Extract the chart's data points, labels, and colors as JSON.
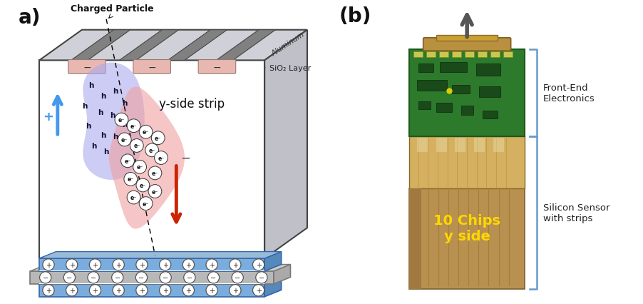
{
  "background_color": "#ffffff",
  "panel_a_label": "a)",
  "panel_b_label": "(b)",
  "label_a_fontsize": 20,
  "label_b_fontsize": 20,
  "charged_particle_label": "Charged Particle",
  "aluminum_label": "Aluminum",
  "sio2_label": "SiO₂ Layer",
  "yside_label": "y-side strip",
  "chips_label": "10 Chips\ny side",
  "chips_color": "#FFD700",
  "frontend_label": "Front-End\nElectronics",
  "silicon_label": "Silicon Sensor\nwith strips",
  "bracket_color": "#6699cc",
  "hole_cloud_color": "#aaaaee",
  "electron_cloud_color": "#f0a0a0",
  "arrow_up_color": "#4499ee",
  "arrow_down_color": "#cc2200",
  "blue_layer_color": "#7aacdd",
  "gray_layer_color": "#b8b8b8",
  "top_face_color": "#d0d0d8",
  "right_face_color": "#c0c0c8",
  "sio2_strip_color": "#e8b8b0"
}
